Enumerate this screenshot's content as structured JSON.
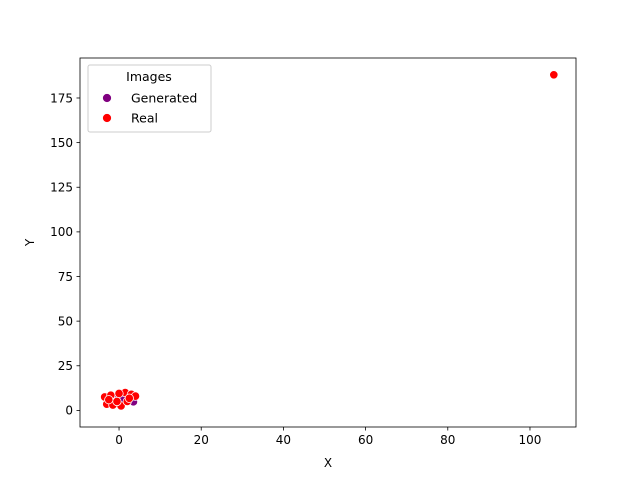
{
  "chart_data": {
    "type": "scatter",
    "xlabel": "X",
    "ylabel": "Y",
    "xlim": [
      -9.5,
      111.2
    ],
    "ylim": [
      -9.3,
      197.4
    ],
    "xticks": [
      0,
      20,
      40,
      60,
      80,
      100
    ],
    "yticks": [
      0,
      25,
      50,
      75,
      100,
      125,
      150,
      175
    ],
    "grid": false,
    "legend": {
      "title": "Images",
      "placement": "top-left",
      "entries": [
        "Generated",
        "Real"
      ]
    },
    "series": [
      {
        "name": "Generated",
        "color": "#800080",
        "points": [
          [
            0.0,
            7.0
          ],
          [
            1.5,
            8.5
          ],
          [
            -1.0,
            6.0
          ],
          [
            2.5,
            5.5
          ],
          [
            0.5,
            4.5
          ],
          [
            -0.5,
            8.0
          ],
          [
            3.5,
            4.8
          ],
          [
            1.0,
            6.5
          ],
          [
            -2.0,
            5.2
          ],
          [
            2.0,
            7.5
          ],
          [
            0.8,
            5.8
          ],
          [
            -1.5,
            7.2
          ]
        ]
      },
      {
        "name": "Real",
        "color": "#ff0000",
        "points": [
          [
            105.8,
            188.0
          ],
          [
            -3.5,
            7.5
          ],
          [
            -2.0,
            8.5
          ],
          [
            1.5,
            10.0
          ],
          [
            3.0,
            9.0
          ],
          [
            4.0,
            8.0
          ],
          [
            -3.0,
            3.5
          ],
          [
            -1.5,
            3.0
          ],
          [
            0.5,
            2.5
          ],
          [
            2.0,
            5.0
          ],
          [
            -2.5,
            6.0
          ],
          [
            0.0,
            9.5
          ],
          [
            -0.5,
            5.0
          ],
          [
            2.5,
            6.8
          ]
        ]
      }
    ]
  }
}
